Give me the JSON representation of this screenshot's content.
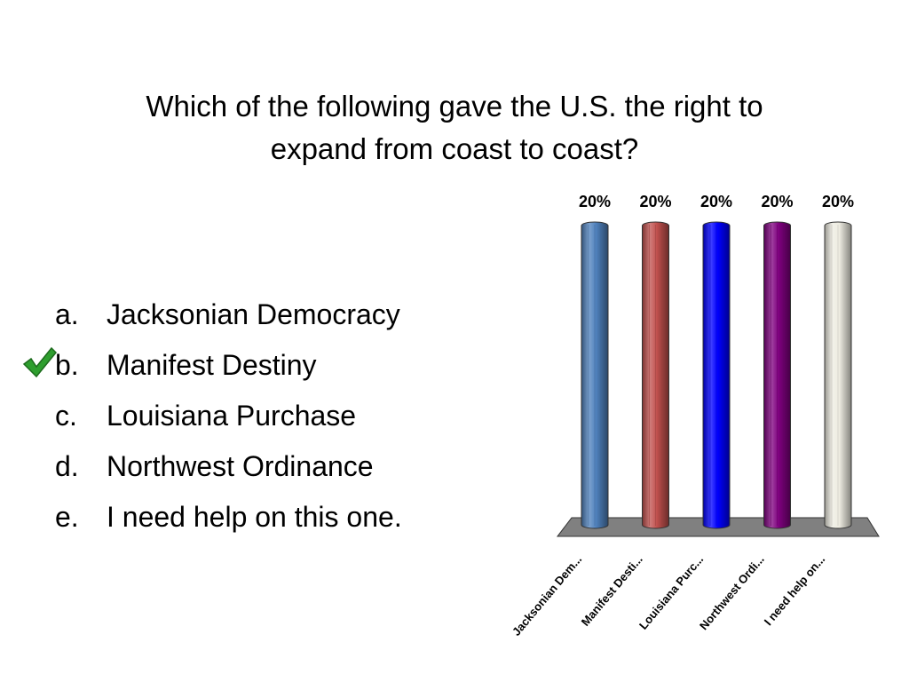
{
  "slide": {
    "title_line1": "Which of the following gave the U.S. the right to",
    "title_line2": "expand from coast to coast?"
  },
  "options": [
    {
      "letter": "a.",
      "label": "Jacksonian Democracy"
    },
    {
      "letter": "b.",
      "label": "Manifest Destiny",
      "correct": true
    },
    {
      "letter": "c.",
      "label": "Louisiana Purchase"
    },
    {
      "letter": "d.",
      "label": "Northwest Ordinance"
    },
    {
      "letter": "e.",
      "label": "I need help on this one."
    }
  ],
  "icons": {
    "correct_marker": "checkmark-icon"
  },
  "chart_data": {
    "type": "bar",
    "categories": [
      "Jacksonian Dem...",
      "Manifest Desti...",
      "Louisiana Purc...",
      "Northwest Ordi...",
      "I need help on..."
    ],
    "values": [
      20,
      20,
      20,
      20,
      20
    ],
    "data_labels": [
      "20%",
      "20%",
      "20%",
      "20%",
      "20%"
    ],
    "ylim": [
      0,
      20
    ],
    "colors": [
      "#4f81bd",
      "#c0504d",
      "#0000ff",
      "#7f007f",
      "#eeece1"
    ],
    "floor_color": "#808080",
    "grid": false,
    "legend": "none"
  }
}
